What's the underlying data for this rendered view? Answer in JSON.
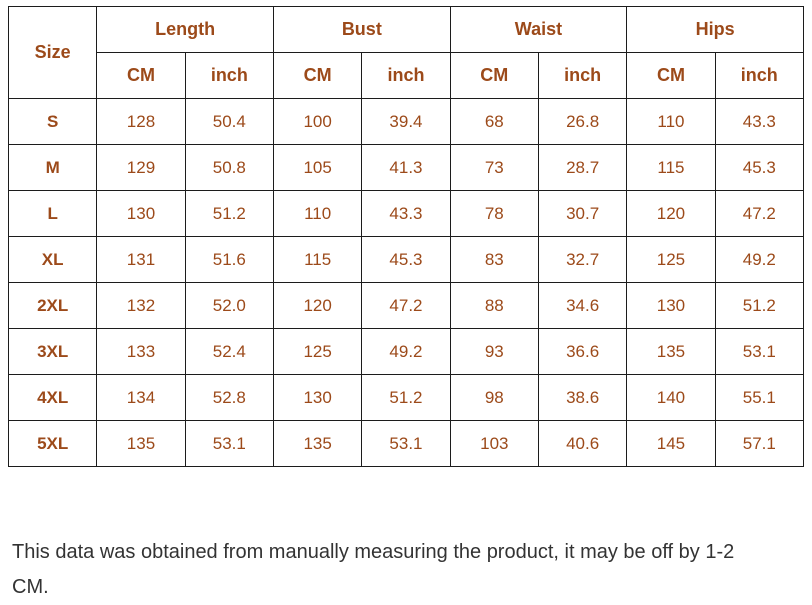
{
  "colors": {
    "accent": "#9c4a1a",
    "border": "#1c1c1c",
    "note_text": "#333333"
  },
  "chart_data": {
    "type": "table",
    "corner_header": "Size",
    "group_headers": [
      "Length",
      "Bust",
      "Waist",
      "Hips"
    ],
    "unit_headers": [
      "CM",
      "inch"
    ],
    "columns": [
      "Size",
      "Length CM",
      "Length inch",
      "Bust CM",
      "Bust inch",
      "Waist CM",
      "Waist inch",
      "Hips CM",
      "Hips inch"
    ],
    "rows": [
      {
        "size": "S",
        "values": [
          "128",
          "50.4",
          "100",
          "39.4",
          "68",
          "26.8",
          "110",
          "43.3"
        ]
      },
      {
        "size": "M",
        "values": [
          "129",
          "50.8",
          "105",
          "41.3",
          "73",
          "28.7",
          "115",
          "45.3"
        ]
      },
      {
        "size": "L",
        "values": [
          "130",
          "51.2",
          "110",
          "43.3",
          "78",
          "30.7",
          "120",
          "47.2"
        ]
      },
      {
        "size": "XL",
        "values": [
          "131",
          "51.6",
          "115",
          "45.3",
          "83",
          "32.7",
          "125",
          "49.2"
        ]
      },
      {
        "size": "2XL",
        "values": [
          "132",
          "52.0",
          "120",
          "47.2",
          "88",
          "34.6",
          "130",
          "51.2"
        ]
      },
      {
        "size": "3XL",
        "values": [
          "133",
          "52.4",
          "125",
          "49.2",
          "93",
          "36.6",
          "135",
          "53.1"
        ]
      },
      {
        "size": "4XL",
        "values": [
          "134",
          "52.8",
          "130",
          "51.2",
          "98",
          "38.6",
          "140",
          "55.1"
        ]
      },
      {
        "size": "5XL",
        "values": [
          "135",
          "53.1",
          "135",
          "53.1",
          "103",
          "40.6",
          "145",
          "57.1"
        ]
      }
    ]
  },
  "footer": {
    "note": "This data was obtained from manually measuring the product, it may be off by 1-2 CM."
  }
}
